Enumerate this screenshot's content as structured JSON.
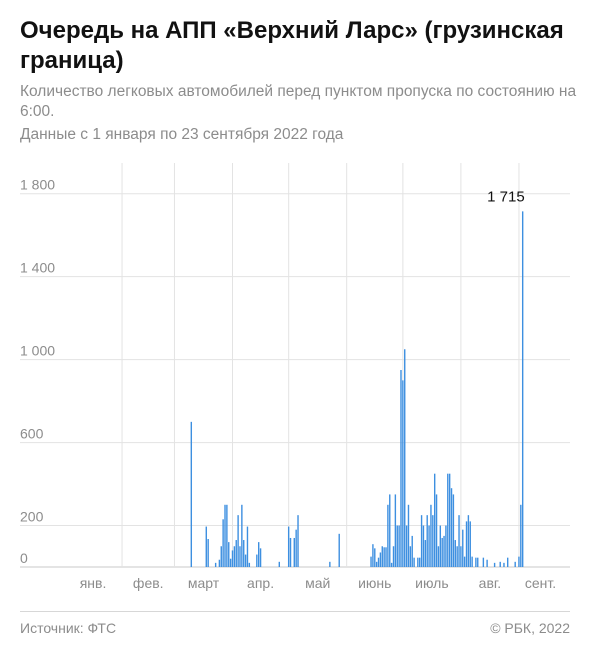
{
  "header": {
    "title": "Очередь на АПП «Верхний Ларс» (грузинская граница)",
    "subtitle": "Количество легковых автомобилей перед пунктом пропуска по состоянию на 6:00.",
    "dates": "Данные с 1 января по 23 сентября 2022 года"
  },
  "footer": {
    "source": "Источник: ФТС",
    "copyright": "© РБК, 2022"
  },
  "colors": {
    "bar": "#3d8fe0",
    "grid": "#e3e3e3",
    "axis": "#c8c8c8"
  },
  "chart_data": {
    "type": "bar",
    "title": "Очередь на АПП «Верхний Ларс» (грузинская граница)",
    "xlabel": "",
    "ylabel": "",
    "ylim": [
      0,
      1900
    ],
    "y_ticks": [
      0,
      200,
      600,
      1000,
      1400,
      1800
    ],
    "y_tick_labels": [
      "0",
      "200",
      "600",
      "1 000",
      "1 400",
      "1 800"
    ],
    "x_ticks": [
      "янв.",
      "фев.",
      "март",
      "апр.",
      "май",
      "июнь",
      "июль",
      "авг.",
      "сент."
    ],
    "peak_label": "1 715",
    "grid": true,
    "series": [
      {
        "values": [
          [
            68,
            700
          ],
          [
            76,
            195
          ],
          [
            77,
            135
          ],
          [
            81,
            20
          ],
          [
            83,
            35
          ],
          [
            84,
            100
          ],
          [
            85,
            230
          ],
          [
            86,
            300
          ],
          [
            87,
            300
          ],
          [
            88,
            120
          ],
          [
            89,
            40
          ],
          [
            90,
            80
          ],
          [
            91,
            100
          ],
          [
            92,
            130
          ],
          [
            93,
            250
          ],
          [
            94,
            100
          ],
          [
            95,
            300
          ],
          [
            96,
            130
          ],
          [
            97,
            60
          ],
          [
            98,
            195
          ],
          [
            99,
            20
          ],
          [
            103,
            60
          ],
          [
            104,
            120
          ],
          [
            105,
            90
          ],
          [
            115,
            25
          ],
          [
            120,
            195
          ],
          [
            121,
            140
          ],
          [
            123,
            140
          ],
          [
            124,
            180
          ],
          [
            125,
            250
          ],
          [
            142,
            25
          ],
          [
            147,
            160
          ],
          [
            164,
            50
          ],
          [
            165,
            110
          ],
          [
            166,
            90
          ],
          [
            167,
            25
          ],
          [
            168,
            45
          ],
          [
            169,
            70
          ],
          [
            170,
            100
          ],
          [
            171,
            95
          ],
          [
            172,
            95
          ],
          [
            173,
            300
          ],
          [
            174,
            350
          ],
          [
            175,
            20
          ],
          [
            176,
            100
          ],
          [
            177,
            350
          ],
          [
            178,
            200
          ],
          [
            179,
            200
          ],
          [
            180,
            950
          ],
          [
            181,
            900
          ],
          [
            182,
            1050
          ],
          [
            183,
            200
          ],
          [
            184,
            300
          ],
          [
            185,
            100
          ],
          [
            186,
            150
          ],
          [
            187,
            45
          ],
          [
            189,
            45
          ],
          [
            190,
            45
          ],
          [
            191,
            250
          ],
          [
            192,
            200
          ],
          [
            193,
            130
          ],
          [
            194,
            250
          ],
          [
            195,
            200
          ],
          [
            196,
            300
          ],
          [
            197,
            250
          ],
          [
            198,
            450
          ],
          [
            199,
            350
          ],
          [
            200,
            100
          ],
          [
            201,
            200
          ],
          [
            202,
            140
          ],
          [
            203,
            150
          ],
          [
            204,
            200
          ],
          [
            205,
            450
          ],
          [
            206,
            450
          ],
          [
            207,
            380
          ],
          [
            208,
            350
          ],
          [
            209,
            130
          ],
          [
            210,
            100
          ],
          [
            211,
            250
          ],
          [
            212,
            100
          ],
          [
            213,
            180
          ],
          [
            214,
            50
          ],
          [
            215,
            220
          ],
          [
            216,
            250
          ],
          [
            217,
            220
          ],
          [
            218,
            50
          ],
          [
            220,
            45
          ],
          [
            221,
            45
          ],
          [
            224,
            45
          ],
          [
            226,
            35
          ],
          [
            230,
            20
          ],
          [
            233,
            25
          ],
          [
            235,
            20
          ],
          [
            237,
            45
          ],
          [
            241,
            25
          ],
          [
            243,
            50
          ],
          [
            244,
            300
          ],
          [
            245,
            1715
          ]
        ]
      }
    ]
  }
}
